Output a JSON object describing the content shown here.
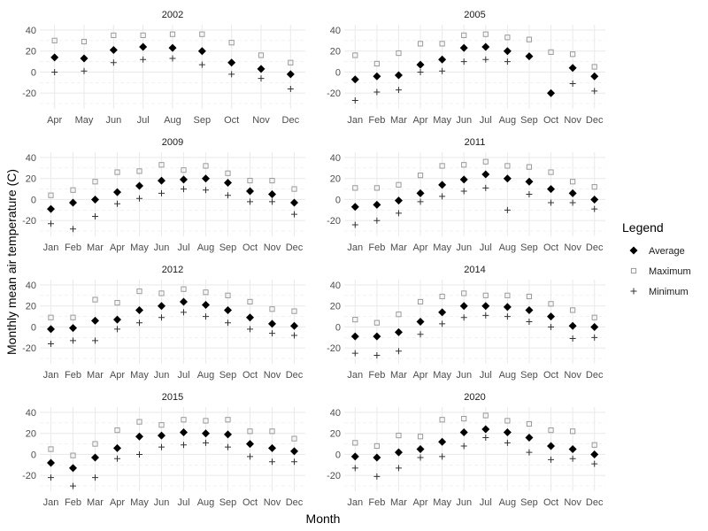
{
  "chart_data": {
    "type": "scatter",
    "xlabel": "Month",
    "ylabel": "Monthly mean air temperature (C)",
    "ylim": [
      -35,
      45
    ],
    "y_ticks": [
      -20,
      0,
      20,
      40
    ],
    "grid": true,
    "legend": {
      "title": "Legend",
      "position": "right",
      "entries": [
        {
          "label": "Average",
          "marker": "filled-diamond",
          "color": "#000000"
        },
        {
          "label": "Maximum",
          "marker": "open-square",
          "color": "#999999"
        },
        {
          "label": "Minimum",
          "marker": "plus",
          "color": "#333333"
        }
      ]
    },
    "panels": [
      {
        "title": "2002",
        "months": [
          "Apr",
          "May",
          "Jun",
          "Jul",
          "Aug",
          "Sep",
          "Oct",
          "Nov",
          "Dec"
        ],
        "average": [
          14,
          13,
          21,
          24,
          23,
          20,
          9,
          3,
          -2
        ],
        "maximum": [
          30,
          29,
          35,
          35,
          36,
          36,
          28,
          16,
          9
        ],
        "minimum": [
          0,
          1,
          9,
          12,
          13,
          7,
          -2,
          -6,
          -16
        ]
      },
      {
        "title": "2005",
        "months": [
          "Jan",
          "Feb",
          "Mar",
          "Apr",
          "May",
          "Jun",
          "Jul",
          "Aug",
          "Sep",
          "Oct",
          "Nov",
          "Dec"
        ],
        "average": [
          -7,
          -4,
          -3,
          7,
          12,
          23,
          24,
          20,
          15,
          -20,
          4,
          -4
        ],
        "maximum": [
          16,
          8,
          18,
          27,
          27,
          35,
          36,
          33,
          31,
          19,
          17,
          5
        ],
        "minimum": [
          -27,
          -19,
          -17,
          0,
          1,
          10,
          12,
          10,
          null,
          null,
          -11,
          -18
        ]
      },
      {
        "title": "2009",
        "months": [
          "Jan",
          "Feb",
          "Mar",
          "Apr",
          "May",
          "Jun",
          "Jul",
          "Aug",
          "Sep",
          "Oct",
          "Nov",
          "Dec"
        ],
        "average": [
          -9,
          -3,
          0,
          7,
          13,
          18,
          19,
          20,
          16,
          8,
          5,
          -3
        ],
        "maximum": [
          4,
          9,
          17,
          26,
          27,
          33,
          28,
          32,
          25,
          18,
          18,
          10
        ],
        "minimum": [
          -23,
          -28,
          -16,
          -4,
          1,
          6,
          10,
          9,
          4,
          -2,
          -2,
          -14
        ]
      },
      {
        "title": "2011",
        "months": [
          "Jan",
          "Feb",
          "Mar",
          "Apr",
          "May",
          "Jun",
          "Jul",
          "Aug",
          "Sep",
          "Oct",
          "Nov",
          "Dec"
        ],
        "average": [
          -7,
          -5,
          -1,
          6,
          14,
          19,
          24,
          20,
          17,
          10,
          6,
          0
        ],
        "maximum": [
          11,
          11,
          14,
          23,
          32,
          33,
          36,
          32,
          31,
          26,
          17,
          12
        ],
        "minimum": [
          -24,
          -20,
          -13,
          -2,
          3,
          8,
          11,
          -10,
          5,
          -3,
          -3,
          -9
        ]
      },
      {
        "title": "2012",
        "months": [
          "Jan",
          "Feb",
          "Mar",
          "Apr",
          "May",
          "Jun",
          "Jul",
          "Aug",
          "Sep",
          "Oct",
          "Nov",
          "Dec"
        ],
        "average": [
          -2,
          -1,
          6,
          7,
          16,
          20,
          24,
          21,
          16,
          9,
          3,
          1
        ],
        "maximum": [
          9,
          9,
          26,
          23,
          34,
          32,
          36,
          33,
          30,
          24,
          17,
          15
        ],
        "minimum": [
          -16,
          -13,
          -13,
          -2,
          4,
          9,
          14,
          10,
          4,
          -2,
          -6,
          -8
        ]
      },
      {
        "title": "2014",
        "months": [
          "Jan",
          "Feb",
          "Mar",
          "Apr",
          "May",
          "Jun",
          "Jul",
          "Aug",
          "Sep",
          "Oct",
          "Nov",
          "Dec"
        ],
        "average": [
          -9,
          -9,
          -5,
          5,
          14,
          20,
          20,
          19,
          16,
          10,
          1,
          0
        ],
        "maximum": [
          7,
          4,
          12,
          24,
          29,
          32,
          30,
          30,
          29,
          22,
          16,
          9
        ],
        "minimum": [
          -25,
          -27,
          -23,
          -7,
          3,
          9,
          11,
          10,
          5,
          0,
          -11,
          -10
        ]
      },
      {
        "title": "2015",
        "months": [
          "Jan",
          "Feb",
          "Mar",
          "Apr",
          "May",
          "Jun",
          "Jul",
          "Aug",
          "Sep",
          "Oct",
          "Nov",
          "Dec"
        ],
        "average": [
          -8,
          -13,
          -3,
          6,
          17,
          18,
          21,
          20,
          19,
          10,
          6,
          3
        ],
        "maximum": [
          5,
          -1,
          10,
          23,
          31,
          28,
          33,
          32,
          33,
          22,
          22,
          15
        ],
        "minimum": [
          -22,
          -30,
          -22,
          -4,
          0,
          7,
          9,
          11,
          7,
          -2,
          -7,
          -7
        ]
      },
      {
        "title": "2020",
        "months": [
          "Jan",
          "Feb",
          "Mar",
          "Apr",
          "May",
          "Jun",
          "Jul",
          "Aug",
          "Sep",
          "Oct",
          "Nov",
          "Dec"
        ],
        "average": [
          -2,
          -3,
          2,
          5,
          12,
          21,
          24,
          21,
          16,
          8,
          5,
          0
        ],
        "maximum": [
          11,
          8,
          18,
          17,
          33,
          34,
          37,
          32,
          29,
          23,
          22,
          9
        ],
        "minimum": [
          -13,
          -21,
          -13,
          -3,
          -2,
          8,
          16,
          11,
          2,
          -5,
          -4,
          -9
        ]
      }
    ]
  }
}
